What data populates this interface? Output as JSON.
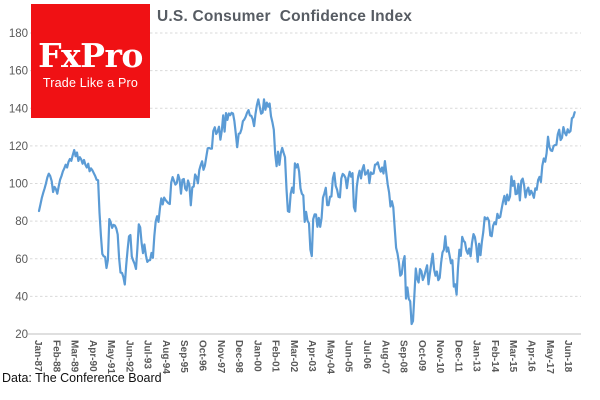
{
  "logo": {
    "brand": "FxPro",
    "tagline": "Trade Like a Pro"
  },
  "title": "U.S. Consumer  Confidence Index",
  "source_note": "Data: The Conference Board",
  "colors": {
    "line": "#5B9BD5",
    "grid": "#D9D9D9",
    "axis": "#BFBFBF",
    "tick_label": "#595959",
    "title_text": "#575C63",
    "logo_bg": "#F01114",
    "logo_text": "#FFFFFF",
    "source_text": "#111111"
  },
  "chart_data": {
    "type": "line",
    "title": "U.S. Consumer Confidence Index",
    "series_name": "Consumer Confidence Index (Conference Board)",
    "frequency": "monthly",
    "x_start": "Jan-1987",
    "x_end": "Oct-2018",
    "ylim": [
      20,
      180
    ],
    "y_ticks": [
      20,
      40,
      60,
      80,
      100,
      120,
      140,
      160,
      180
    ],
    "grid": "horizontal-dashed",
    "legend": "none",
    "x_tick_interval_months": 13,
    "x_tick_labels": [
      "Jan-87",
      "Feb-88",
      "Mar-89",
      "Apr-90",
      "May-91",
      "Jun-92",
      "Jul-93",
      "Aug-94",
      "Sep-95",
      "Oct-96",
      "Nov-97",
      "Dec-98",
      "Jan-00",
      "Feb-01",
      "Mar-02",
      "Apr-03",
      "May-04",
      "Jun-05",
      "Jul-06",
      "Aug-07",
      "Sep-08",
      "Oct-09",
      "Nov-10",
      "Dec-11",
      "Jan-13",
      "Feb-14",
      "Mar-15",
      "Apr-16",
      "May-17",
      "Jun-18"
    ],
    "values": [
      85.4,
      88.8,
      92.3,
      95.0,
      97.4,
      100.1,
      103.3,
      105.2,
      104.0,
      101.2,
      95.5,
      98.2,
      97.0,
      94.6,
      98.5,
      102.0,
      104.0,
      106.5,
      108.1,
      110.0,
      108.5,
      111.5,
      113.0,
      112.0,
      115.0,
      117.8,
      114.5,
      116.5,
      112.0,
      114.0,
      112.8,
      110.5,
      112.5,
      110.0,
      108.5,
      110.5,
      106.5,
      108.0,
      107.0,
      105.5,
      104.0,
      102.0,
      101.7,
      84.6,
      72.4,
      62.6,
      61.3,
      61.0,
      55.1,
      59.4,
      81.1,
      79.4,
      76.4,
      78.0,
      77.7,
      76.1,
      72.9,
      60.4,
      52.7,
      52.5,
      50.2,
      46.3,
      56.5,
      64.8,
      71.9,
      72.6,
      61.2,
      59.0,
      57.3,
      54.6,
      65.6,
      78.3,
      76.7,
      68.5,
      63.0,
      67.6,
      61.9,
      58.3,
      59.2,
      59.3,
      63.1,
      60.5,
      71.9,
      79.8,
      82.6,
      79.6,
      86.7,
      92.1,
      88.9,
      92.5,
      91.3,
      90.4,
      89.5,
      89.1,
      100.4,
      103.4,
      101.4,
      99.4,
      100.2,
      104.6,
      102.0,
      94.6,
      102.0,
      102.4,
      97.3,
      96.3,
      101.6,
      99.2,
      88.4,
      98.0,
      98.4,
      104.8,
      103.5,
      100.1,
      107.2,
      109.8,
      111.8,
      107.3,
      109.5,
      114.2,
      118.7,
      118.9,
      118.5,
      118.5,
      127.9,
      129.9,
      126.3,
      127.6,
      130.2,
      123.3,
      128.1,
      136.2,
      127.6,
      137.4,
      133.8,
      137.2,
      136.3,
      137.6,
      137.2,
      133.1,
      126.4,
      119.3,
      126.4,
      126.7,
      128.9,
      133.1,
      134.0,
      135.5,
      137.7,
      139.0,
      136.2,
      136.0,
      134.2,
      130.5,
      137.0,
      141.7,
      144.7,
      140.8,
      137.1,
      137.7,
      144.7,
      139.2,
      143.0,
      140.8,
      142.5,
      135.8,
      132.6,
      128.6,
      115.7,
      109.2,
      116.9,
      109.9,
      116.1,
      118.9,
      116.3,
      114.0,
      97.0,
      85.3,
      84.9,
      94.6,
      97.8,
      95.0,
      110.7,
      108.5,
      110.3,
      106.3,
      97.4,
      94.5,
      93.7,
      79.6,
      84.9,
      80.3,
      78.8,
      64.8,
      61.4,
      81.0,
      83.6,
      83.5,
      77.0,
      81.7,
      77.0,
      81.7,
      92.5,
      94.8,
      97.7,
      88.5,
      88.5,
      93.0,
      93.1,
      102.8,
      105.7,
      98.7,
      96.7,
      92.9,
      92.6,
      102.7,
      105.1,
      104.4,
      103.0,
      97.5,
      103.1,
      106.2,
      103.6,
      105.5,
      87.5,
      85.2,
      98.3,
      103.8,
      106.8,
      102.7,
      107.5,
      109.8,
      104.7,
      105.4,
      107.0,
      100.2,
      105.9,
      105.1,
      105.3,
      110.0,
      110.2,
      111.2,
      108.2,
      106.3,
      108.5,
      105.3,
      111.9,
      105.6,
      99.5,
      95.2,
      87.8,
      90.6,
      87.3,
      76.4,
      65.9,
      62.8,
      58.1,
      51.0,
      51.9,
      58.5,
      61.4,
      38.8,
      44.7,
      38.6,
      37.4,
      25.3,
      26.9,
      40.8,
      54.8,
      49.3,
      47.4,
      54.5,
      53.4,
      48.7,
      50.6,
      53.6,
      56.5,
      46.4,
      52.3,
      57.7,
      62.7,
      54.3,
      51.0,
      53.2,
      48.6,
      49.9,
      57.8,
      63.4,
      64.8,
      72.0,
      63.8,
      66.0,
      61.7,
      57.6,
      59.2,
      45.2,
      46.4,
      40.9,
      55.2,
      64.8,
      61.5,
      71.6,
      69.5,
      68.7,
      64.4,
      62.7,
      65.4,
      61.3,
      68.4,
      73.1,
      71.5,
      66.7,
      58.4,
      68.0,
      61.9,
      69.0,
      74.3,
      82.1,
      81.0,
      81.8,
      80.2,
      72.4,
      72.0,
      77.5,
      79.4,
      78.3,
      83.9,
      81.7,
      82.2,
      86.4,
      90.3,
      93.4,
      89.0,
      94.1,
      91.0,
      93.1,
      103.8,
      98.8,
      101.4,
      94.3,
      94.6,
      99.8,
      91.0,
      101.5,
      102.6,
      99.1,
      92.6,
      96.3,
      97.8,
      94.0,
      96.1,
      94.7,
      92.4,
      97.4,
      96.7,
      101.8,
      103.5,
      100.8,
      109.4,
      113.3,
      111.6,
      116.1,
      124.9,
      119.4,
      117.6,
      117.3,
      120.0,
      120.4,
      120.6,
      126.2,
      128.6,
      123.1,
      124.3,
      130.0,
      127.0,
      125.6,
      128.8,
      127.1,
      127.9,
      134.7,
      135.3,
      137.9
    ]
  }
}
